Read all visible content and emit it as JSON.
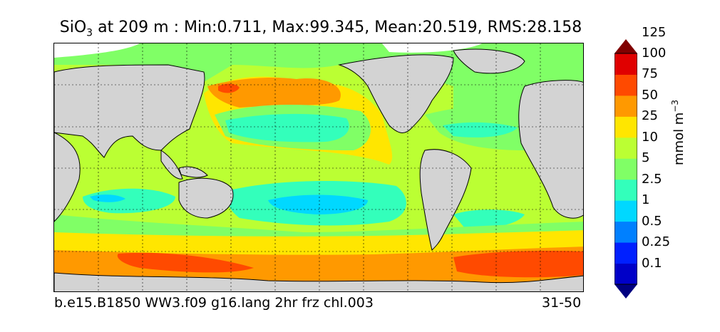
{
  "title": {
    "species": "SiO",
    "species_sub": "3",
    "rest": " at 209 m : Min:0.711, Max:99.345, Mean:20.519, RMS:28.158"
  },
  "footer": {
    "case_name": "b.e15.B1850 WW3.f09 g16.lang 2hr frz chl.003",
    "years": "31-50"
  },
  "colorbar": {
    "unit_main": "mmol m",
    "unit_exp": "−3",
    "levels": [
      "0.1",
      "0.25",
      "0.5",
      "1",
      "2.5",
      "5",
      "10",
      "25",
      "50",
      "75",
      "100",
      "125"
    ],
    "colors": [
      "#000080",
      "#0000c8",
      "#0020ff",
      "#0080ff",
      "#00d8ff",
      "#33ffbb",
      "#80ff66",
      "#bbff33",
      "#ffe600",
      "#ff9900",
      "#ff4a00",
      "#e00000",
      "#800000"
    ]
  },
  "map_colors": {
    "land": "#d3d3d3",
    "ice": "#ffffff"
  }
}
